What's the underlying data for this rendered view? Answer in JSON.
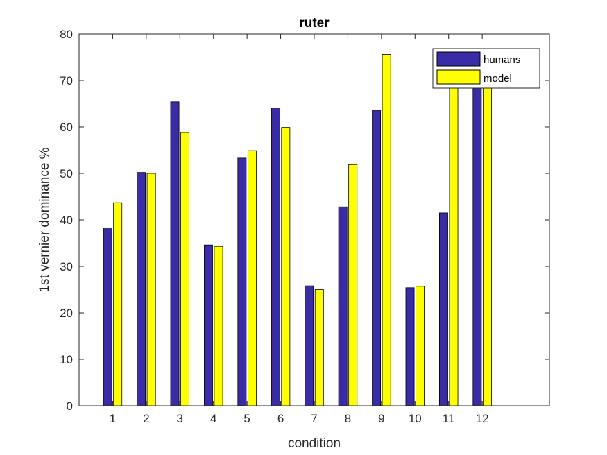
{
  "chart_data": {
    "type": "bar",
    "title": "ruter",
    "xlabel": "condition",
    "ylabel": "1st vernier dominance %",
    "categories": [
      "1",
      "2",
      "3",
      "4",
      "5",
      "6",
      "7",
      "8",
      "9",
      "10",
      "11",
      "12"
    ],
    "series": [
      {
        "name": "humans",
        "color": "#3a2ca6",
        "values": [
          38.3,
          50.2,
          65.4,
          34.6,
          53.3,
          64.1,
          25.8,
          42.8,
          63.6,
          25.4,
          41.5,
          70.0
        ]
      },
      {
        "name": "model",
        "color": "#ffff00",
        "values": [
          43.7,
          50.0,
          58.8,
          34.3,
          54.9,
          59.9,
          25.0,
          51.9,
          75.6,
          25.7,
          70.0,
          70.0
        ]
      }
    ],
    "ylim": [
      0,
      80
    ],
    "yticks": [
      0,
      10,
      20,
      30,
      40,
      50,
      60,
      70,
      80
    ],
    "xlim": [
      0,
      14
    ],
    "legend_position": "top-right",
    "grid": false
  }
}
